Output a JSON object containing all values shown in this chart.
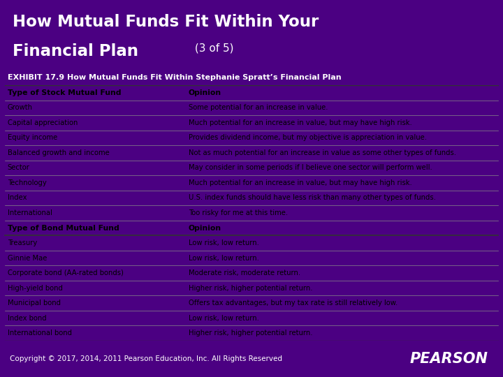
{
  "title_bg": "#4B0082",
  "title_color": "#FFFFFF",
  "title_line1": "How Mutual Funds Fit Within Your",
  "title_line2": "Financial Plan",
  "title_sub": " (3 of 5)",
  "title_fontsize": 16.5,
  "title_sub_fontsize": 11,
  "exhibit_title": "EXHIBIT 17.9 How Mutual Funds Fit Within Stephanie Spratt’s Financial Plan",
  "exhibit_bg": "#C0392B",
  "exhibit_color": "#FFFFFF",
  "exhibit_fontsize": 8.0,
  "header_row": [
    "Type of Stock Mutual Fund",
    "Opinion"
  ],
  "stock_rows": [
    [
      "Growth",
      "Some potential for an increase in value."
    ],
    [
      "Capital appreciation",
      "Much potential for an increase in value, but may have high risk."
    ],
    [
      "Equity income",
      "Provides dividend income, but my objective is appreciation in value."
    ],
    [
      "Balanced growth and income",
      "Not as much potential for an increase in value as some other types of funds."
    ],
    [
      "Sector",
      "May consider in some periods if I believe one sector will perform well."
    ],
    [
      "Technology",
      "Much potential for an increase in value, but may have high risk."
    ],
    [
      "Index",
      "U.S. index funds should have less risk than many other types of funds."
    ],
    [
      "International",
      "Too risky for me at this time."
    ]
  ],
  "bond_header_row": [
    "Type of Bond Mutual Fund",
    "Opinion"
  ],
  "bond_rows": [
    [
      "Treasury",
      "Low risk, low return."
    ],
    [
      "Ginnie Mae",
      "Low risk, low return."
    ],
    [
      "Corporate bond (AA-rated bonds)",
      "Moderate risk, moderate return."
    ],
    [
      "High-yield bond",
      "Higher risk, higher potential return."
    ],
    [
      "Municipal bond",
      "Offers tax advantages, but my tax rate is still relatively low."
    ],
    [
      "Index bond",
      "Low risk, low return."
    ],
    [
      "International bond",
      "Higher risk, higher potential return."
    ]
  ],
  "footer_text": "Copyright © 2017, 2014, 2011 Pearson Education, Inc. All Rights Reserved",
  "footer_bg": "#4B0082",
  "footer_color": "#FFFFFF",
  "pearson_text": "PEARSON",
  "col_split": 0.365,
  "table_bg": "#FFFFFF",
  "line_color": "#888888",
  "thick_line_color": "#333333",
  "row_text_color": "#000000",
  "row_fontsize": 7.2,
  "header_fontsize": 7.8,
  "footer_fontsize": 7.5,
  "pearson_fontsize": 15
}
